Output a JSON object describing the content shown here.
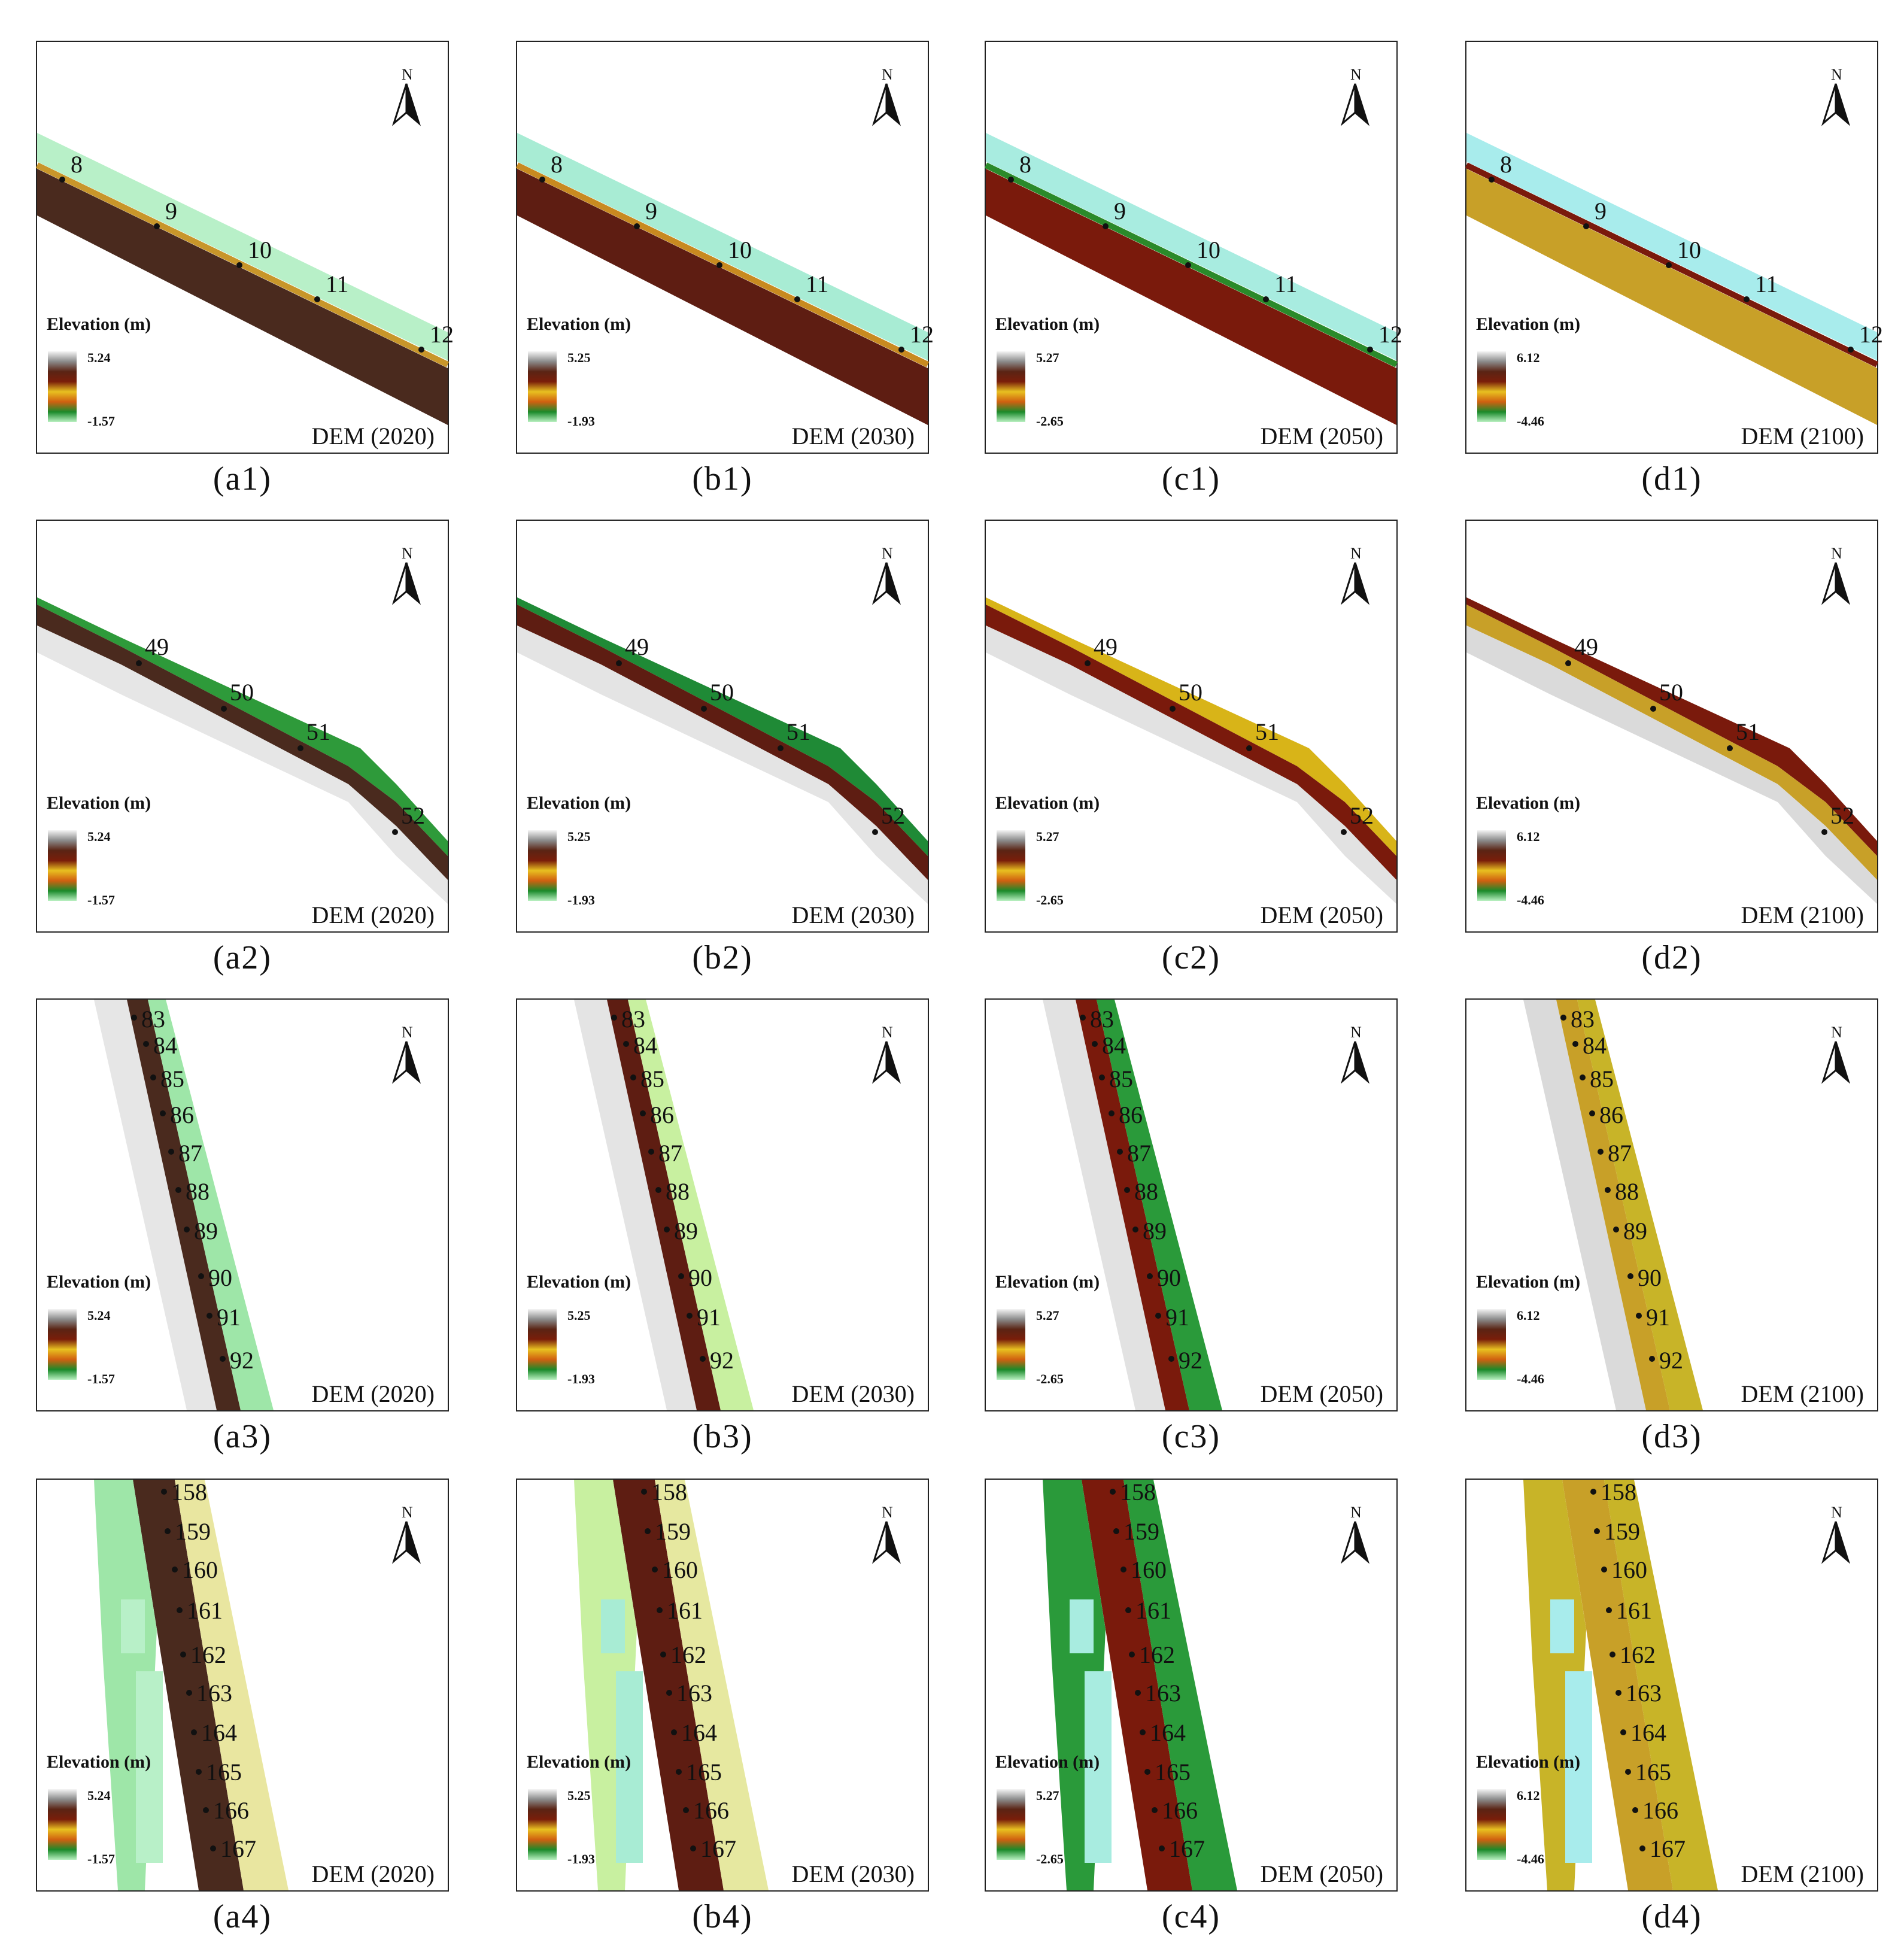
{
  "legend_title": "Elevation (m)",
  "north_label": "N",
  "columns": [
    {
      "dem_label": "DEM (2020)",
      "legend_max": "5.24",
      "legend_min": "-1.57",
      "theme": "2020"
    },
    {
      "dem_label": "DEM (2030)",
      "legend_max": "5.25",
      "legend_min": "-1.93",
      "theme": "2030"
    },
    {
      "dem_label": "DEM (2050)",
      "legend_max": "5.27",
      "legend_min": "-2.65",
      "theme": "2050"
    },
    {
      "dem_label": "DEM (2100)",
      "legend_max": "6.12",
      "legend_min": "-4.46",
      "theme": "2100"
    }
  ],
  "rows": [
    {
      "captions": [
        "(a1)",
        "(b1)",
        "(c1)",
        "(d1)"
      ],
      "markers": [
        "8",
        "9",
        "10",
        "11",
        "12"
      ]
    },
    {
      "captions": [
        "(a2)",
        "(b2)",
        "(c2)",
        "(d2)"
      ],
      "markers": [
        "49",
        "50",
        "51",
        "52"
      ]
    },
    {
      "captions": [
        "(a3)",
        "(b3)",
        "(c3)",
        "(d3)"
      ],
      "markers": [
        "83",
        "84",
        "85",
        "86",
        "87",
        "88",
        "89",
        "90",
        "91",
        "92"
      ]
    },
    {
      "captions": [
        "(a4)",
        "(b4)",
        "(c4)",
        "(d4)"
      ],
      "markers": [
        "158",
        "159",
        "160",
        "161",
        "162",
        "163",
        "164",
        "165",
        "166",
        "167"
      ]
    }
  ],
  "colors": {
    "legend_ramp": [
      "#f4f4f4",
      "#8c8c8c",
      "#5a2414",
      "#7a1e0a",
      "#e8c020",
      "#d06010",
      "#1a8a2a",
      "#b8f0c0"
    ],
    "2020": {
      "land": "#4a2a1e",
      "land_light": "#e6e6e6",
      "sea": "#b8f0c8",
      "sea2": "#9ee6a8",
      "seawall": "#c8962a",
      "row2sea": "#2e9a3a",
      "row4sea": "#e9e6a0"
    },
    "2030": {
      "land": "#5e1d12",
      "land_light": "#e4e4e4",
      "sea": "#a8ecd4",
      "sea2": "#c8f0a0",
      "seawall": "#c88a20",
      "row2sea": "#1f8a36",
      "row4sea": "#e6e8a0"
    },
    "2050": {
      "land": "#7a1a0c",
      "land_light": "#e2e2e2",
      "sea": "#a8ece0",
      "sea2": "#2a9a3a",
      "seawall": "#2a8a2a",
      "row2sea": "#d8b418",
      "row4sea": "#2a9a3a"
    },
    "2100": {
      "land": "#c8a028",
      "land_light": "#dadada",
      "sea": "#a8ecec",
      "sea2": "#c8b428",
      "seawall": "#7a1a0c",
      "row2sea": "#7a1a0c",
      "row4sea": "#c8b428"
    }
  }
}
